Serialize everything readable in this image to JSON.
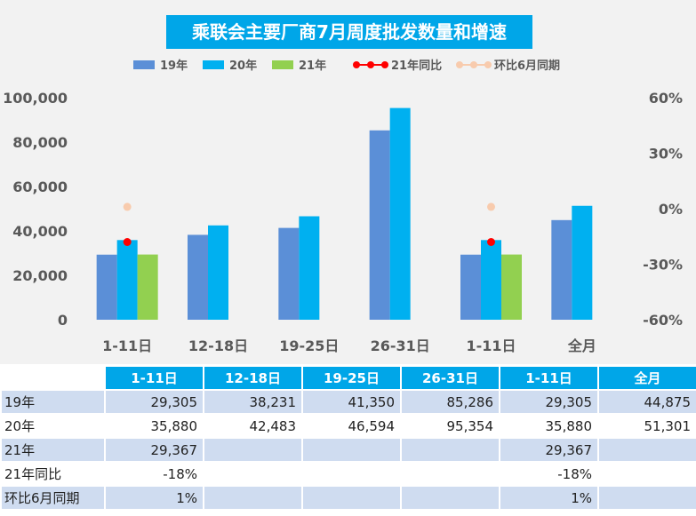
{
  "chart_data": {
    "type": "bar",
    "title": "乘联会主要厂商7月周度批发数量和增速",
    "categories": [
      "1-11日",
      "12-18日",
      "19-25日",
      "26-31日",
      "1-11日",
      "全月"
    ],
    "series": [
      {
        "name": "19年",
        "kind": "bar",
        "axis": "left",
        "color": "#5b8fd7",
        "values": [
          29305,
          38231,
          41350,
          85286,
          29305,
          44875
        ]
      },
      {
        "name": "20年",
        "kind": "bar",
        "axis": "left",
        "color": "#00b0f0",
        "values": [
          35880,
          42483,
          46594,
          95354,
          35880,
          51301
        ]
      },
      {
        "name": "21年",
        "kind": "bar",
        "axis": "left",
        "color": "#92d050",
        "values": [
          29367,
          null,
          null,
          null,
          29367,
          null
        ]
      },
      {
        "name": "21年同比",
        "kind": "line",
        "axis": "right",
        "color": "#ff0000",
        "values": [
          -18,
          null,
          null,
          null,
          -18,
          null
        ]
      },
      {
        "name": "环比6月同期",
        "kind": "line",
        "axis": "right",
        "color": "#f8cbad",
        "values": [
          1,
          null,
          null,
          null,
          1,
          null
        ]
      }
    ],
    "left_axis": {
      "ylim": [
        0,
        100000
      ],
      "ticks": [
        "0",
        "20,000",
        "40,000",
        "60,000",
        "80,000",
        "100,000"
      ]
    },
    "right_axis": {
      "ylim": [
        -60,
        60
      ],
      "ticks": [
        "-60%",
        "-30%",
        "0%",
        "30%",
        "60%"
      ]
    },
    "grid": false,
    "legend": "top"
  },
  "table": {
    "headers": [
      "1-11日",
      "12-18日",
      "19-25日",
      "26-31日",
      "1-11日",
      "全月"
    ],
    "rows": [
      {
        "label": "19年",
        "cells": [
          "29,305",
          "38,231",
          "41,350",
          "85,286",
          "29,305",
          "44,875"
        ]
      },
      {
        "label": "20年",
        "cells": [
          "35,880",
          "42,483",
          "46,594",
          "95,354",
          "35,880",
          "51,301"
        ]
      },
      {
        "label": "21年",
        "cells": [
          "29,367",
          "",
          "",
          "",
          "29,367",
          ""
        ]
      },
      {
        "label": "21年同比",
        "cells": [
          "-18%",
          "",
          "",
          "",
          "-18%",
          ""
        ]
      },
      {
        "label": "环比6月同期",
        "cells": [
          "1%",
          "",
          "",
          "",
          "1%",
          ""
        ]
      }
    ]
  }
}
